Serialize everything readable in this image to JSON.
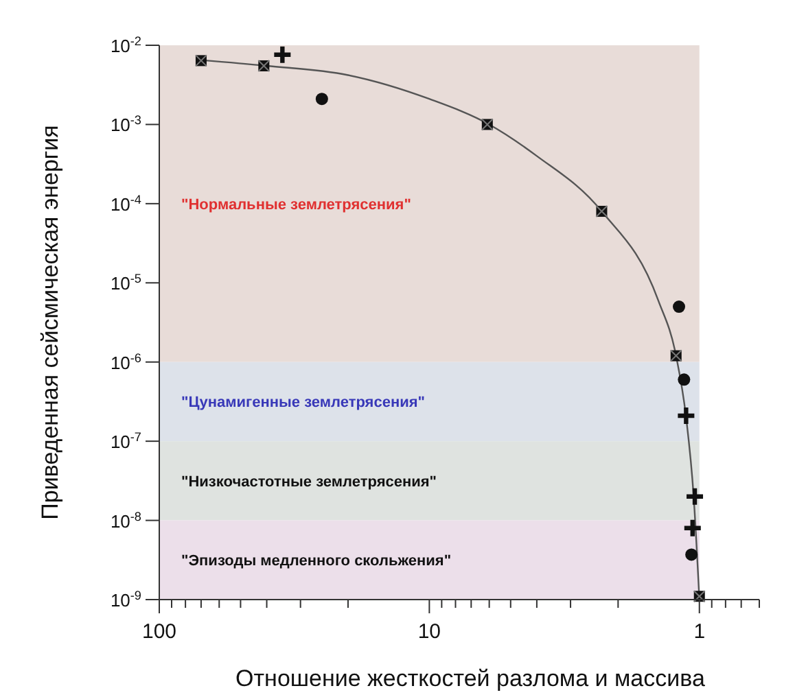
{
  "chart_data": {
    "type": "scatter",
    "xlabel": "Отношение жесткостей разлома  и массива",
    "ylabel": "Приведенная сейсмическая энергия",
    "log": "xy",
    "xlim": [
      100,
      0.6
    ],
    "ylim": [
      1e-09,
      0.01
    ],
    "xticks": [
      100,
      {
        "value": 90,
        "label": null
      },
      {
        "value": 80,
        "label": null
      },
      {
        "value": 70,
        "label": null
      },
      {
        "value": 60,
        "label": null
      },
      {
        "value": 50,
        "label": null
      },
      {
        "value": 40,
        "label": null
      },
      {
        "value": 30,
        "label": null
      },
      {
        "value": 20,
        "label": null
      },
      10,
      {
        "value": 9,
        "label": null
      },
      {
        "value": 8,
        "label": null
      },
      {
        "value": 7,
        "label": null
      },
      {
        "value": 6,
        "label": null
      },
      {
        "value": 5,
        "label": null
      },
      {
        "value": 4,
        "label": null
      },
      {
        "value": 3,
        "label": null
      },
      {
        "value": 2,
        "label": null
      },
      1,
      {
        "value": 0.9,
        "label": null
      },
      {
        "value": 0.8,
        "label": null
      },
      {
        "value": 0.7,
        "label": null
      },
      {
        "value": 0.6,
        "label": null
      }
    ],
    "yticks": [
      {
        "value": 1e-09,
        "label": "10$^{-9}$"
      },
      {
        "value": 1e-08,
        "label": "10$^{-8}$"
      },
      {
        "value": 1e-07,
        "label": "10$^{-7}$"
      },
      {
        "value": 1e-06,
        "label": "10$^{-6}$"
      },
      {
        "value": 1e-05,
        "label": "10$^{-5}$"
      },
      {
        "value": 0.0001,
        "label": "10$^{-4}$"
      },
      {
        "value": 0.001,
        "label": "10$^{-3}$"
      },
      {
        "value": 0.01,
        "label": "10$^{-2}$"
      }
    ],
    "bands": [
      {
        "axis": "y",
        "from": 1e-06,
        "to": 0.01,
        "label": "\"Нормальные землетрясения\"",
        "color": "#e8dcd8"
      },
      {
        "axis": "y",
        "from": 1e-07,
        "to": 1e-06,
        "label": "\"Цунамигенные землетрясения\"",
        "color": "#dde2ea"
      },
      {
        "axis": "y",
        "from": 1e-08,
        "to": 1e-07,
        "label": "\"Низкочастотные землетрясения\"",
        "color": "#dfe3e0"
      },
      {
        "axis": "y",
        "from": 1e-09,
        "to": 1e-08,
        "label": "\"Эпизоды медленного скольжения\"",
        "color": "#ecdfea"
      }
    ],
    "grid": false,
    "series": [
      {
        "type": "line",
        "marker": "none",
        "color": "#555555",
        "x": [
          70,
          40,
          20,
          10,
          6,
          4,
          2.3,
          1.42,
          1.22,
          1.12,
          1.05,
          1.0
        ],
        "values": [
          0.0065,
          0.0055,
          0.0042,
          0.0021,
          0.001,
          0.0004,
          8e-05,
          6e-06,
          1.2e-06,
          2e-07,
          2e-08,
          1e-09
        ]
      },
      {
        "marker": "square",
        "color": "#111111",
        "x": [
          70,
          41,
          6.1,
          2.3,
          1.22,
          1.0
        ],
        "values": [
          0.0064,
          0.0055,
          0.001,
          8e-05,
          1.2e-06,
          1.1e-09
        ]
      },
      {
        "marker": "cross",
        "color": "#111111",
        "x": [
          35,
          1.12,
          1.04,
          1.06
        ],
        "values": [
          0.0076,
          2.1e-07,
          2e-08,
          8e-09
        ]
      },
      {
        "marker": "circle",
        "color": "#111111",
        "x": [
          25,
          1.19,
          1.14,
          1.07
        ],
        "values": [
          0.0021,
          5e-06,
          6e-07,
          3.7e-09
        ]
      }
    ]
  }
}
